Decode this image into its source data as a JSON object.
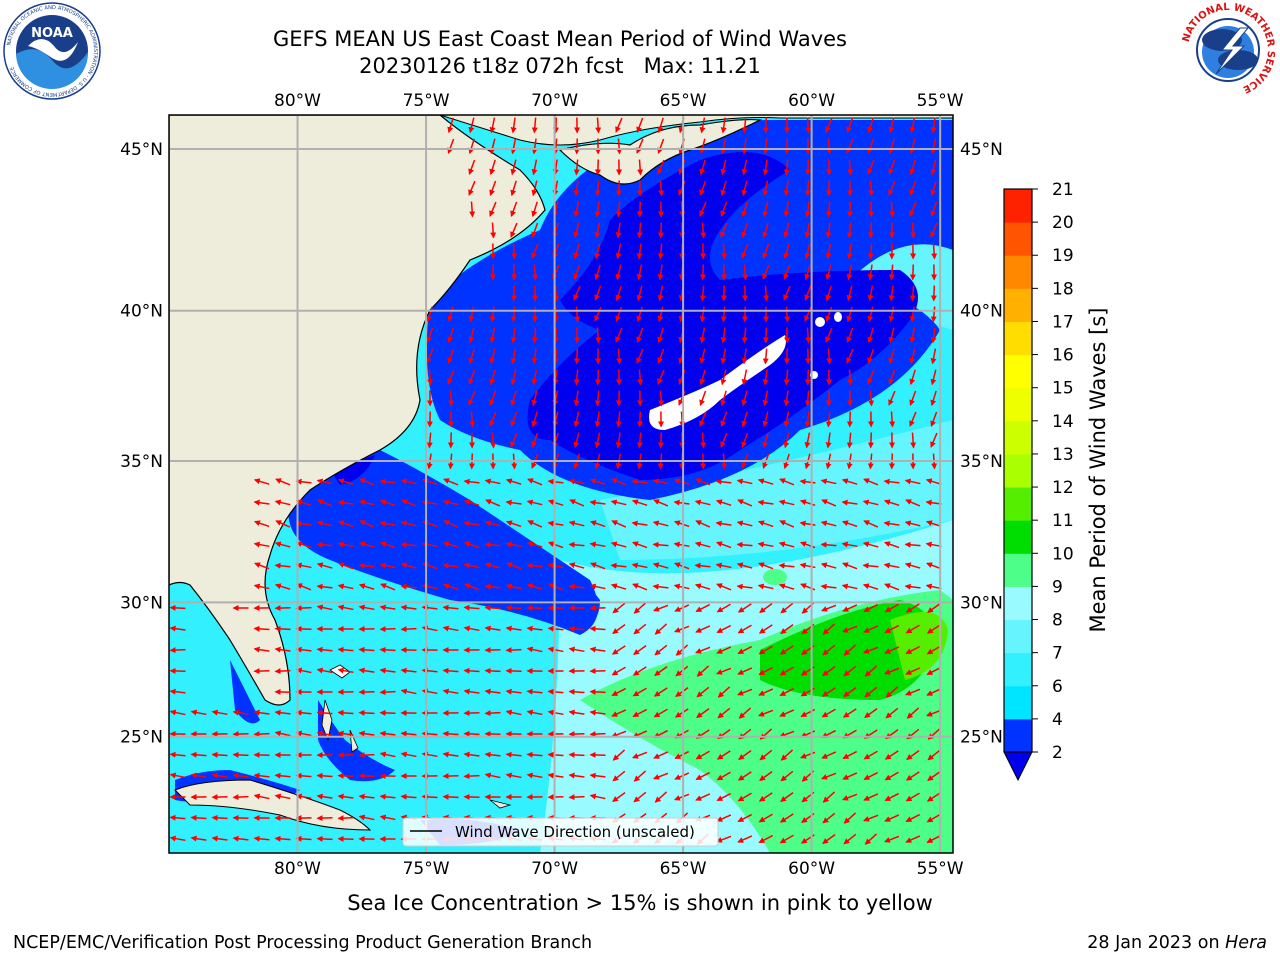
{
  "title": {
    "line1": "GEFS MEAN US East Coast Mean Period of Wind Waves",
    "line2": "20230126 t18z 072h fcst   Max: 11.21"
  },
  "map": {
    "lon_labels": [
      "80°W",
      "75°W",
      "70°W",
      "65°W",
      "60°W",
      "55°W"
    ],
    "lon_values": [
      -80,
      -75,
      -70,
      -65,
      -60,
      -55
    ],
    "lat_labels": [
      "45°N",
      "40°N",
      "35°N",
      "30°N",
      "25°N"
    ],
    "lat_values": [
      45,
      40,
      35,
      30,
      25
    ],
    "lon_range": [
      -85,
      -54.5
    ],
    "lat_range": [
      20.5,
      46
    ],
    "grid": true,
    "land_color": "#eeecdb",
    "arrow_color": "#ff0000",
    "legend": {
      "label": "Wind Wave Direction (unscaled)",
      "placement": "lower-center"
    }
  },
  "colorbar": {
    "label": "Mean Period of Wind Waves [s]",
    "ticks": [
      "2",
      "4",
      "6",
      "7",
      "8",
      "9",
      "10",
      "11",
      "12",
      "13",
      "14",
      "15",
      "16",
      "17",
      "18",
      "19",
      "20",
      "21"
    ],
    "colors": [
      "#0033ff",
      "#00e5ff",
      "#33f0ff",
      "#66f5ff",
      "#99faff",
      "#4dff88",
      "#00dd00",
      "#55ee00",
      "#aaff00",
      "#ccff00",
      "#eeff00",
      "#ffff00",
      "#ffdd00",
      "#ffb000",
      "#ff8800",
      "#ff5500",
      "#ff2200"
    ],
    "under_color": "#0000ee"
  },
  "caption": "Sea Ice Concentration > 15% is shown in pink to yellow",
  "footer": {
    "left": "NCEP/EMC/Verification Post Processing Product Generation Branch",
    "date": "28 Jan 2023 on",
    "machine": "Hera"
  },
  "logos": {
    "noaa_text": "NOAA",
    "noaa_ring": "NATIONAL OCEANIC AND ATMOSPHERIC ADMINISTRATION · U.S. DEPARTMENT OF COMMERCE",
    "nws_ring": "NATIONAL WEATHER SERVICE"
  }
}
